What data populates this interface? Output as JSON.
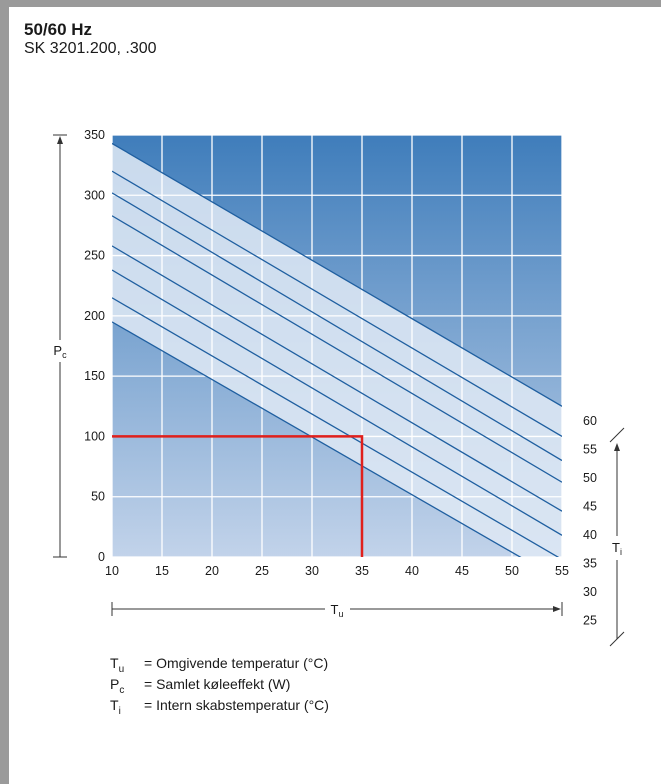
{
  "header": {
    "title": "50/60 Hz",
    "subtitle": "SK 3201.200, .300"
  },
  "legend": [
    {
      "symbol": "T",
      "sub": "u",
      "text": "= Omgivende temperatur (°C)"
    },
    {
      "symbol": "P",
      "sub": "c",
      "text": "= Samlet køleeffekt (W)"
    },
    {
      "symbol": "T",
      "sub": "i",
      "text": "= Intern skabstemperatur (°C)"
    }
  ],
  "chart_data": {
    "type": "line",
    "x_ticks": [
      "10",
      "15",
      "20",
      "25",
      "30",
      "35",
      "40",
      "45",
      "50",
      "55"
    ],
    "y_ticks": [
      "0",
      "50",
      "100",
      "150",
      "200",
      "250",
      "300",
      "350"
    ],
    "xlim": [
      10,
      55
    ],
    "ylim": [
      0,
      350
    ],
    "ylabel": {
      "main": "P",
      "sub": "c"
    },
    "xlabel": {
      "main": "T",
      "sub": "u"
    },
    "ti_label": {
      "main": "T",
      "sub": "i"
    },
    "ti_ticks": [
      "60",
      "55",
      "50",
      "45",
      "40",
      "35",
      "30",
      "25"
    ],
    "series": [
      {
        "name": "60",
        "x": [
          10,
          55
        ],
        "y": [
          343,
          125
        ]
      },
      {
        "name": "55",
        "x": [
          10,
          55
        ],
        "y": [
          320,
          100
        ]
      },
      {
        "name": "50",
        "x": [
          10,
          55
        ],
        "y": [
          302,
          80
        ]
      },
      {
        "name": "45",
        "x": [
          10,
          55
        ],
        "y": [
          283,
          62
        ]
      },
      {
        "name": "40",
        "x": [
          10,
          55
        ],
        "y": [
          258,
          38
        ]
      },
      {
        "name": "35",
        "x": [
          10,
          55
        ],
        "y": [
          238,
          18
        ]
      },
      {
        "name": "30",
        "x": [
          10,
          55
        ],
        "y": [
          215,
          -2
        ]
      },
      {
        "name": "25",
        "x": [
          10,
          55
        ],
        "y": [
          195,
          -20
        ]
      }
    ],
    "reference": {
      "x": 35,
      "y": 100,
      "color": "#e0201c"
    },
    "colors": {
      "line": "#1f5fa0",
      "bg_top": "#3f7dbb",
      "bg_bottom": "#c2d3ea",
      "band": "#dde7f4"
    }
  }
}
